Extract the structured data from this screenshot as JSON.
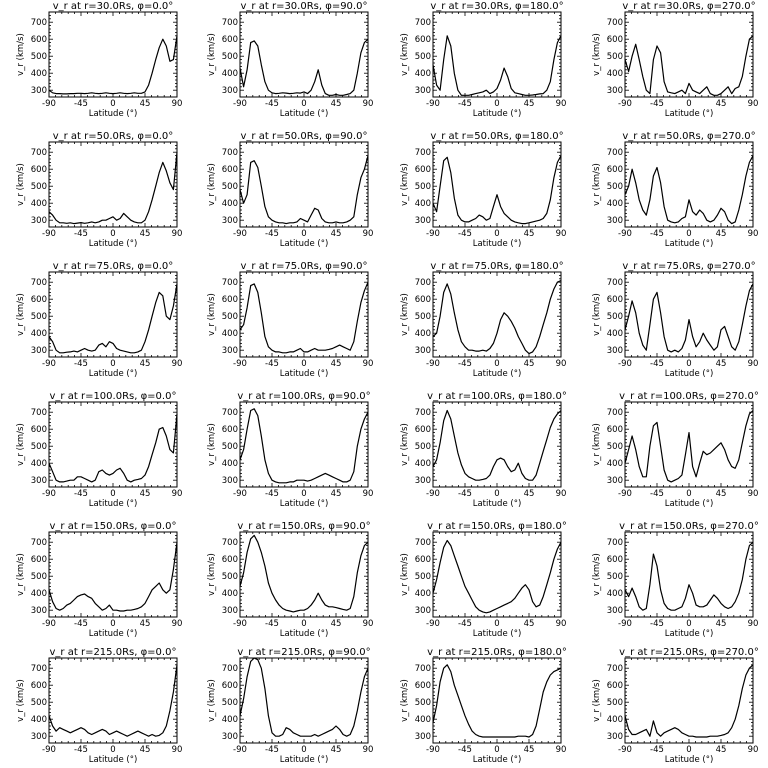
{
  "chart_data": {
    "type": "line",
    "xlabel": "Latitude (°)",
    "ylabel": "v_r (km/s)",
    "xlim": [
      -90,
      90
    ],
    "ylim": [
      260,
      760
    ],
    "xticks": [
      -90,
      -45,
      0,
      45,
      90
    ],
    "yticks": [
      300,
      400,
      500,
      600,
      700
    ],
    "x": [
      -90,
      -85,
      -80,
      -75,
      -70,
      -65,
      -60,
      -55,
      -50,
      -45,
      -40,
      -35,
      -30,
      -25,
      -20,
      -15,
      -10,
      -5,
      0,
      5,
      10,
      15,
      20,
      25,
      30,
      35,
      40,
      45,
      50,
      55,
      60,
      65,
      70,
      75,
      80,
      85,
      90
    ],
    "panels": [
      {
        "title": "v_r at r=30.0Rs, φ=0.0°",
        "values": [
          300,
          285,
          280,
          280,
          278,
          278,
          280,
          280,
          282,
          282,
          280,
          282,
          285,
          282,
          280,
          282,
          285,
          282,
          280,
          282,
          285,
          282,
          280,
          282,
          285,
          282,
          282,
          290,
          330,
          400,
          480,
          550,
          600,
          560,
          470,
          480,
          620
        ]
      },
      {
        "title": "v_r at r=30.0Rs, φ=90.0°",
        "values": [
          430,
          320,
          420,
          580,
          590,
          560,
          450,
          350,
          300,
          285,
          280,
          282,
          285,
          283,
          280,
          282,
          285,
          283,
          290,
          280,
          300,
          350,
          420,
          330,
          280,
          270,
          270,
          275,
          270,
          270,
          275,
          280,
          300,
          400,
          520,
          580,
          600
        ]
      },
      {
        "title": "v_r at r=30.0Rs, φ=180.0°",
        "values": [
          450,
          330,
          300,
          480,
          620,
          560,
          400,
          300,
          270,
          270,
          270,
          275,
          280,
          285,
          290,
          300,
          280,
          290,
          310,
          360,
          430,
          380,
          310,
          285,
          280,
          275,
          270,
          270,
          272,
          275,
          278,
          280,
          300,
          350,
          480,
          580,
          620
        ]
      },
      {
        "title": "v_r at r=30.0Rs, φ=270.0°",
        "values": [
          480,
          410,
          500,
          570,
          480,
          380,
          300,
          280,
          480,
          560,
          520,
          350,
          290,
          285,
          280,
          290,
          300,
          280,
          340,
          300,
          290,
          280,
          300,
          320,
          280,
          270,
          270,
          280,
          300,
          320,
          280,
          310,
          320,
          380,
          500,
          600,
          620
        ]
      },
      {
        "title": "v_r at r=50.0Rs, φ=0.0°",
        "values": [
          350,
          330,
          300,
          285,
          285,
          282,
          285,
          280,
          283,
          286,
          282,
          285,
          290,
          285,
          290,
          300,
          300,
          310,
          320,
          300,
          310,
          340,
          320,
          300,
          290,
          285,
          285,
          300,
          350,
          420,
          500,
          580,
          640,
          590,
          520,
          480,
          700
        ]
      },
      {
        "title": "v_r at r=50.0Rs, φ=90.0°",
        "values": [
          480,
          400,
          450,
          640,
          650,
          610,
          500,
          380,
          320,
          300,
          290,
          285,
          285,
          280,
          285,
          285,
          290,
          310,
          300,
          290,
          330,
          370,
          360,
          310,
          290,
          285,
          285,
          290,
          285,
          285,
          290,
          300,
          320,
          450,
          550,
          600,
          680
        ]
      },
      {
        "title": "v_r at r=50.0Rs, φ=180.0°",
        "values": [
          400,
          350,
          500,
          650,
          670,
          580,
          430,
          330,
          300,
          290,
          290,
          300,
          310,
          330,
          320,
          300,
          310,
          380,
          450,
          380,
          340,
          320,
          300,
          290,
          285,
          280,
          280,
          285,
          290,
          295,
          300,
          310,
          340,
          420,
          550,
          640,
          680
        ]
      },
      {
        "title": "v_r at r=50.0Rs, φ=270.0°",
        "values": [
          450,
          500,
          600,
          520,
          420,
          360,
          330,
          420,
          560,
          610,
          520,
          380,
          300,
          290,
          285,
          290,
          310,
          320,
          420,
          350,
          330,
          360,
          340,
          300,
          290,
          300,
          330,
          370,
          350,
          300,
          280,
          290,
          360,
          450,
          560,
          640,
          680
        ]
      },
      {
        "title": "v_r at r=75.0Rs, φ=0.0°",
        "values": [
          380,
          350,
          300,
          285,
          285,
          288,
          290,
          295,
          290,
          300,
          310,
          300,
          295,
          300,
          330,
          340,
          320,
          350,
          340,
          310,
          300,
          295,
          290,
          285,
          285,
          290,
          300,
          350,
          420,
          500,
          580,
          640,
          620,
          500,
          480,
          560,
          690
        ]
      },
      {
        "title": "v_r at r=75.0Rs, φ=90.0°",
        "values": [
          420,
          450,
          550,
          680,
          690,
          640,
          520,
          380,
          320,
          300,
          290,
          290,
          285,
          285,
          290,
          290,
          300,
          310,
          290,
          290,
          300,
          310,
          300,
          300,
          300,
          305,
          310,
          320,
          330,
          320,
          310,
          300,
          350,
          470,
          580,
          650,
          700
        ]
      },
      {
        "title": "v_r at r=75.0Rs, φ=180.0°",
        "values": [
          380,
          400,
          500,
          640,
          690,
          630,
          520,
          420,
          350,
          320,
          300,
          300,
          295,
          295,
          300,
          295,
          310,
          340,
          400,
          480,
          520,
          500,
          470,
          430,
          380,
          340,
          300,
          280,
          290,
          320,
          380,
          450,
          520,
          600,
          660,
          700,
          710
        ]
      },
      {
        "title": "v_r at r=75.0Rs, φ=270.0°",
        "values": [
          420,
          500,
          590,
          520,
          400,
          330,
          300,
          450,
          600,
          640,
          520,
          380,
          300,
          290,
          300,
          290,
          310,
          360,
          480,
          380,
          320,
          350,
          400,
          360,
          330,
          300,
          320,
          420,
          440,
          380,
          320,
          300,
          350,
          450,
          560,
          650,
          690
        ]
      },
      {
        "title": "v_r at r=100.0Rs, φ=0.0°",
        "values": [
          400,
          350,
          300,
          290,
          290,
          295,
          300,
          300,
          320,
          320,
          310,
          300,
          290,
          300,
          350,
          360,
          340,
          330,
          340,
          360,
          370,
          340,
          300,
          290,
          300,
          305,
          310,
          330,
          380,
          450,
          520,
          600,
          610,
          560,
          480,
          460,
          690
        ]
      },
      {
        "title": "v_r at r=100.0Rs, φ=90.0°",
        "values": [
          420,
          480,
          600,
          710,
          720,
          680,
          560,
          420,
          340,
          300,
          290,
          285,
          285,
          285,
          290,
          290,
          300,
          300,
          300,
          295,
          300,
          310,
          320,
          330,
          340,
          330,
          320,
          310,
          300,
          290,
          290,
          300,
          350,
          500,
          600,
          660,
          700
        ]
      },
      {
        "title": "v_r at r=100.0Rs, φ=180.0°",
        "values": [
          380,
          420,
          520,
          650,
          710,
          660,
          560,
          460,
          390,
          340,
          320,
          310,
          300,
          300,
          305,
          310,
          330,
          380,
          420,
          430,
          420,
          380,
          350,
          360,
          400,
          340,
          310,
          300,
          300,
          330,
          400,
          470,
          540,
          610,
          660,
          690,
          710
        ]
      },
      {
        "title": "v_r at r=100.0Rs, φ=270.0°",
        "values": [
          400,
          480,
          560,
          480,
          380,
          320,
          320,
          500,
          620,
          640,
          500,
          360,
          300,
          290,
          300,
          310,
          330,
          450,
          580,
          380,
          320,
          400,
          470,
          450,
          460,
          480,
          500,
          520,
          480,
          420,
          380,
          370,
          420,
          520,
          620,
          690,
          710
        ]
      },
      {
        "title": "v_r at r=150.0Rs, φ=0.0°",
        "values": [
          420,
          350,
          310,
          300,
          310,
          330,
          340,
          360,
          380,
          390,
          395,
          380,
          370,
          340,
          320,
          300,
          310,
          330,
          300,
          300,
          295,
          295,
          300,
          300,
          305,
          310,
          320,
          340,
          380,
          420,
          440,
          460,
          420,
          400,
          420,
          540,
          700
        ]
      },
      {
        "title": "v_r at r=150.0Rs, φ=90.0°",
        "values": [
          440,
          520,
          640,
          720,
          740,
          700,
          640,
          560,
          460,
          400,
          360,
          330,
          310,
          300,
          295,
          290,
          295,
          300,
          300,
          310,
          330,
          360,
          400,
          360,
          330,
          320,
          320,
          315,
          310,
          305,
          300,
          310,
          380,
          520,
          620,
          680,
          700
        ]
      },
      {
        "title": "v_r at r=150.0Rs, φ=180.0°",
        "values": [
          400,
          480,
          580,
          670,
          710,
          680,
          620,
          560,
          500,
          440,
          400,
          360,
          320,
          300,
          290,
          285,
          290,
          300,
          310,
          320,
          330,
          340,
          350,
          370,
          400,
          430,
          450,
          420,
          350,
          320,
          330,
          380,
          450,
          520,
          600,
          660,
          700
        ]
      },
      {
        "title": "v_r at r=150.0Rs, φ=270.0°",
        "values": [
          420,
          380,
          430,
          380,
          320,
          300,
          310,
          450,
          630,
          560,
          420,
          340,
          310,
          300,
          300,
          310,
          320,
          370,
          450,
          400,
          330,
          320,
          320,
          330,
          360,
          390,
          370,
          340,
          320,
          310,
          320,
          350,
          400,
          480,
          600,
          680,
          700
        ]
      },
      {
        "title": "v_r at r=215.0Rs, φ=0.0°",
        "values": [
          420,
          360,
          330,
          350,
          340,
          330,
          320,
          330,
          340,
          350,
          340,
          320,
          310,
          320,
          330,
          340,
          330,
          310,
          320,
          330,
          320,
          310,
          300,
          310,
          320,
          330,
          320,
          310,
          300,
          310,
          300,
          305,
          320,
          360,
          450,
          560,
          720
        ]
      },
      {
        "title": "v_r at r=215.0Rs, φ=90.0°",
        "values": [
          420,
          520,
          650,
          740,
          760,
          750,
          700,
          580,
          420,
          320,
          300,
          300,
          310,
          350,
          340,
          320,
          310,
          300,
          300,
          300,
          300,
          310,
          300,
          310,
          320,
          330,
          340,
          360,
          340,
          310,
          300,
          310,
          360,
          450,
          560,
          650,
          700
        ]
      },
      {
        "title": "v_r at r=215.0Rs, φ=180.0°",
        "values": [
          380,
          480,
          620,
          700,
          720,
          680,
          600,
          540,
          480,
          420,
          370,
          330,
          310,
          300,
          295,
          295,
          295,
          295,
          295,
          295,
          295,
          295,
          295,
          295,
          300,
          300,
          300,
          295,
          310,
          360,
          460,
          560,
          620,
          660,
          680,
          690,
          700
        ]
      },
      {
        "title": "v_r at r=215.0Rs, φ=270.0°",
        "values": [
          420,
          340,
          310,
          310,
          320,
          330,
          340,
          300,
          390,
          320,
          300,
          320,
          330,
          340,
          350,
          340,
          320,
          310,
          300,
          300,
          295,
          295,
          295,
          295,
          300,
          300,
          300,
          305,
          310,
          320,
          350,
          400,
          480,
          580,
          660,
          700,
          720
        ]
      }
    ]
  }
}
